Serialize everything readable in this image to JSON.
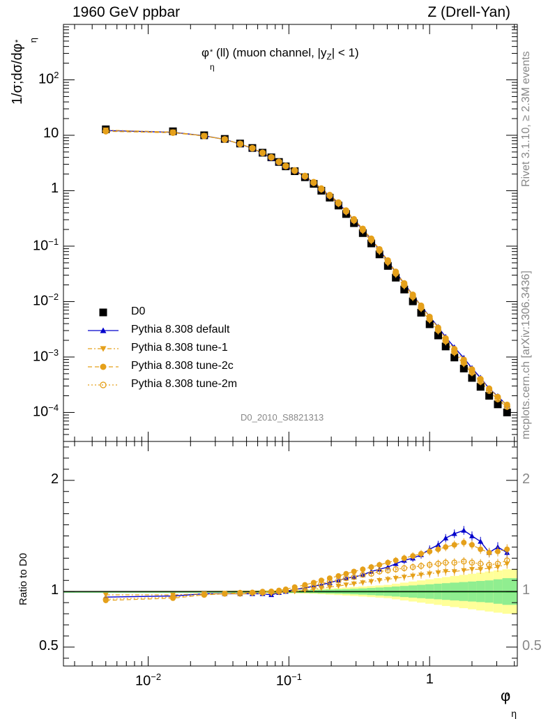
{
  "header": {
    "left": "1960 GeV ppbar",
    "right": "Z (Drell-Yan)"
  },
  "side_text": {
    "rivet": "Rivet 3.1.10, ≥ 2.3M events",
    "mcplots": "mcplots.cern.ch [arXiv:1306.3436]"
  },
  "analysis_id": "D0_2010_S8821313",
  "main_title": {
    "phi": "φ",
    "phi_sup": "*",
    "phi_sub": "η",
    "mid": "(ll) (muon channel, |y",
    "y_sub": "Z",
    "end": "| < 1)"
  },
  "y_axis": {
    "main_label": "1/σ;dσ/dφ",
    "main_sup": "*",
    "main_sub": "η",
    "ratio_label": "Ratio to D0"
  },
  "x_axis": {
    "label": "φ",
    "label_sup": "*",
    "label_sub": "η"
  },
  "colors": {
    "data": "#000000",
    "default": "#0000cc",
    "tune": "#e5a01a",
    "band_green": "#90ee90",
    "band_yellow": "#ffff99",
    "ref_line": "#000000"
  },
  "legend": [
    {
      "name": "D0",
      "marker": "square",
      "color": "#000000",
      "line": "none"
    },
    {
      "name": "Pythia 8.308 default",
      "marker": "triangle-up",
      "color": "#0000cc",
      "line": "solid"
    },
    {
      "name": "Pythia 8.308 tune-1",
      "marker": "triangle-down",
      "color": "#e5a01a",
      "line": "dashdot"
    },
    {
      "name": "Pythia 8.308 tune-2c",
      "marker": "circle",
      "color": "#e5a01a",
      "line": "dashed"
    },
    {
      "name": "Pythia 8.308 tune-2m",
      "marker": "open-circle",
      "color": "#e5a01a",
      "line": "dotted"
    }
  ],
  "chart_data": {
    "type": "line",
    "x_scale": "log",
    "xlim": [
      0.0025,
      4.2
    ],
    "main": {
      "y_scale": "log",
      "ylim": [
        3e-05,
        1000
      ],
      "y_ticks": [
        {
          "v": 100,
          "base": "10",
          "exp": "2"
        },
        {
          "v": 10,
          "base": "10",
          "exp": ""
        },
        {
          "v": 1,
          "base": "1",
          "exp": ""
        },
        {
          "v": 0.1,
          "base": "10",
          "exp": "−1"
        },
        {
          "v": 0.01,
          "base": "10",
          "exp": "−2"
        },
        {
          "v": 0.001,
          "base": "10",
          "exp": "−3"
        },
        {
          "v": 0.0001,
          "base": "10",
          "exp": "−4"
        }
      ]
    },
    "ratio": {
      "y_scale": "linear",
      "ylim": [
        0.33,
        2.35
      ],
      "y_ticks": [
        {
          "v": 2,
          "label": "2"
        },
        {
          "v": 1,
          "label": "1"
        },
        {
          "v": 0.5,
          "label": "0.5"
        }
      ]
    },
    "x_ticks": [
      {
        "v": 0.01,
        "base": "10",
        "exp": "−2"
      },
      {
        "v": 0.1,
        "base": "10",
        "exp": "−1"
      },
      {
        "v": 1,
        "base": "1",
        "exp": ""
      }
    ],
    "x": [
      0.005,
      0.015,
      0.025,
      0.035,
      0.045,
      0.055,
      0.065,
      0.075,
      0.085,
      0.095,
      0.11,
      0.13,
      0.15,
      0.17,
      0.195,
      0.225,
      0.255,
      0.29,
      0.335,
      0.385,
      0.44,
      0.505,
      0.575,
      0.66,
      0.76,
      0.87,
      1.0,
      1.15,
      1.3,
      1.5,
      1.75,
      2.0,
      2.3,
      2.65,
      3.05,
      3.55
    ],
    "series": [
      {
        "name": "D0",
        "values": [
          12.8,
          11.8,
          10.0,
          8.6,
          7.1,
          5.9,
          4.85,
          4.0,
          3.3,
          2.75,
          2.25,
          1.75,
          1.33,
          1.0,
          0.75,
          0.54,
          0.38,
          0.26,
          0.172,
          0.112,
          0.071,
          0.044,
          0.027,
          0.0165,
          0.0101,
          0.0063,
          0.0039,
          0.00245,
          0.00155,
          0.00098,
          0.00062,
          0.00042,
          0.00029,
          0.0002,
          0.00014,
          0.0001
        ]
      },
      {
        "name": "Pythia 8.308 default",
        "ratio": [
          0.95,
          0.96,
          0.98,
          0.98,
          0.98,
          0.98,
          0.98,
          0.97,
          0.99,
          1.0,
          1.02,
          1.03,
          1.05,
          1.06,
          1.08,
          1.1,
          1.12,
          1.13,
          1.15,
          1.18,
          1.2,
          1.22,
          1.25,
          1.28,
          1.3,
          1.33,
          1.38,
          1.42,
          1.48,
          1.52,
          1.55,
          1.5,
          1.45,
          1.35,
          1.4,
          1.35
        ]
      },
      {
        "name": "Pythia 8.308 tune-1",
        "ratio": [
          0.97,
          0.97,
          0.98,
          0.98,
          0.98,
          0.98,
          0.98,
          0.98,
          0.99,
          1.0,
          1.0,
          1.01,
          1.02,
          1.03,
          1.04,
          1.05,
          1.06,
          1.07,
          1.08,
          1.09,
          1.1,
          1.11,
          1.12,
          1.13,
          1.14,
          1.15,
          1.16,
          1.17,
          1.18,
          1.18,
          1.19,
          1.2,
          1.2,
          1.21,
          1.22,
          1.25
        ]
      },
      {
        "name": "Pythia 8.308 tune-2c",
        "ratio": [
          0.92,
          0.94,
          0.97,
          0.98,
          0.99,
          0.99,
          1.0,
          1.0,
          1.01,
          1.02,
          1.04,
          1.06,
          1.08,
          1.1,
          1.12,
          1.14,
          1.16,
          1.18,
          1.2,
          1.22,
          1.24,
          1.26,
          1.28,
          1.3,
          1.32,
          1.34,
          1.36,
          1.38,
          1.4,
          1.42,
          1.44,
          1.42,
          1.38,
          1.35,
          1.36,
          1.38
        ]
      },
      {
        "name": "Pythia 8.308 tune-2m",
        "ratio": [
          0.93,
          0.95,
          0.97,
          0.98,
          0.98,
          0.99,
          0.99,
          1.0,
          1.0,
          1.01,
          1.02,
          1.04,
          1.05,
          1.07,
          1.09,
          1.1,
          1.12,
          1.13,
          1.15,
          1.16,
          1.18,
          1.19,
          1.2,
          1.21,
          1.22,
          1.23,
          1.24,
          1.25,
          1.26,
          1.26,
          1.27,
          1.26,
          1.25,
          1.24,
          1.25,
          1.28
        ]
      }
    ],
    "uncertainty_band": {
      "green_halfwidth": [
        0.003,
        0.003,
        0.004,
        0.004,
        0.005,
        0.005,
        0.006,
        0.006,
        0.007,
        0.008,
        0.01,
        0.012,
        0.014,
        0.016,
        0.018,
        0.02,
        0.022,
        0.025,
        0.028,
        0.032,
        0.036,
        0.04,
        0.045,
        0.05,
        0.055,
        0.06,
        0.065,
        0.07,
        0.075,
        0.08,
        0.085,
        0.09,
        0.095,
        0.1,
        0.11,
        0.12
      ],
      "yellow_halfwidth": [
        0.005,
        0.006,
        0.007,
        0.008,
        0.009,
        0.01,
        0.011,
        0.012,
        0.013,
        0.014,
        0.016,
        0.018,
        0.02,
        0.024,
        0.028,
        0.032,
        0.036,
        0.04,
        0.045,
        0.05,
        0.055,
        0.06,
        0.07,
        0.08,
        0.09,
        0.1,
        0.11,
        0.12,
        0.13,
        0.14,
        0.15,
        0.16,
        0.17,
        0.18,
        0.19,
        0.2
      ]
    }
  }
}
